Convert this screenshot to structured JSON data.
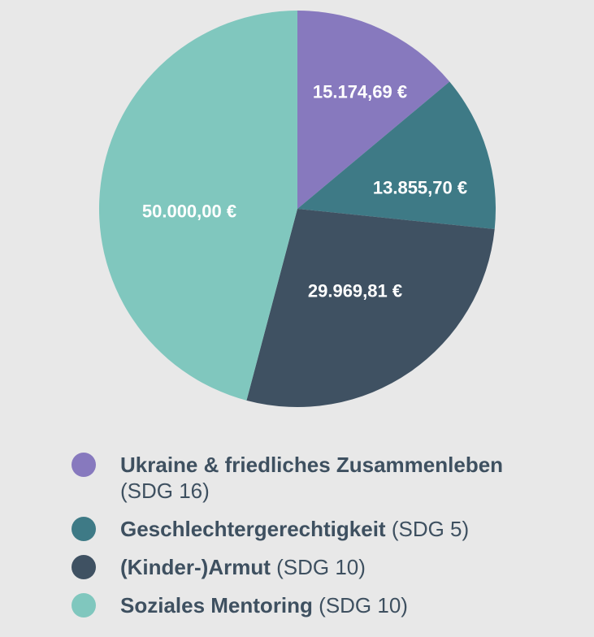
{
  "chart_data": {
    "type": "pie",
    "title": "",
    "start_angle_deg": 0,
    "direction": "clockwise",
    "legend_position": "bottom-left",
    "background_color": "#E8E8E8",
    "legend_text_color": "#3E5060",
    "value_label_color": "#FFFFFF",
    "slices": [
      {
        "label": "Ukraine & friedliches Zusammenleben",
        "sdg": "(SDG 16)",
        "value": 15174.69,
        "value_label": "15.174,69 €",
        "color": "#8779BE"
      },
      {
        "label": "Geschlechtergerechtigkeit",
        "sdg": "(SDG 5)",
        "value": 13855.7,
        "value_label": "13.855,70 €",
        "color": "#3E7A86"
      },
      {
        "label": "(Kinder-)Armut",
        "sdg": "(SDG 10)",
        "value": 29969.81,
        "value_label": "29.969,81 €",
        "color": "#3F5162"
      },
      {
        "label": "Soziales Mentoring",
        "sdg": "(SDG 10)",
        "value": 50000.0,
        "value_label": "50.000,00 €",
        "color": "#80C7BE"
      }
    ]
  }
}
